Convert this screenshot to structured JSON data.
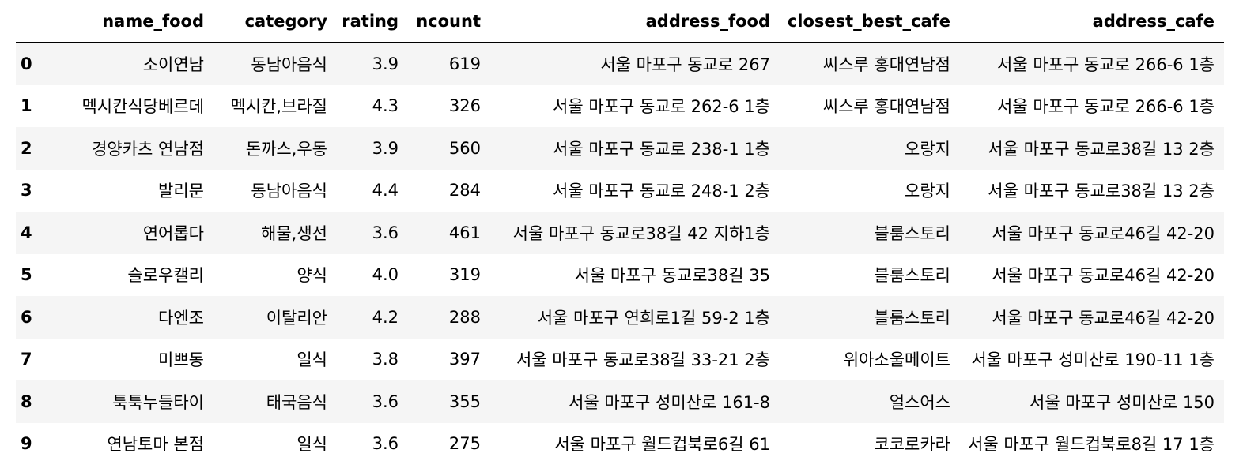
{
  "table": {
    "index_header": "",
    "columns": [
      "name_food",
      "category",
      "rating",
      "ncount",
      "address_food",
      "closest_best_cafe",
      "address_cafe"
    ],
    "rows": [
      {
        "index": "0",
        "cells": [
          "소이연남",
          "동남아음식",
          "3.9",
          "619",
          "서울 마포구 동교로 267",
          "씨스루 홍대연남점",
          "서울 마포구 동교로 266-6 1층"
        ]
      },
      {
        "index": "1",
        "cells": [
          "멕시칸식당베르데",
          "멕시칸,브라질",
          "4.3",
          "326",
          "서울 마포구 동교로 262-6 1층",
          "씨스루 홍대연남점",
          "서울 마포구 동교로 266-6 1층"
        ]
      },
      {
        "index": "2",
        "cells": [
          "경양카츠 연남점",
          "돈까스,우동",
          "3.9",
          "560",
          "서울 마포구 동교로 238-1 1층",
          "오랑지",
          "서울 마포구 동교로38길 13 2층"
        ]
      },
      {
        "index": "3",
        "cells": [
          "발리문",
          "동남아음식",
          "4.4",
          "284",
          "서울 마포구 동교로 248-1 2층",
          "오랑지",
          "서울 마포구 동교로38길 13 2층"
        ]
      },
      {
        "index": "4",
        "cells": [
          "연어롭다",
          "해물,생선",
          "3.6",
          "461",
          "서울 마포구 동교로38길 42 지하1층",
          "블룸스토리",
          "서울 마포구 동교로46길 42-20"
        ]
      },
      {
        "index": "5",
        "cells": [
          "슬로우캘리",
          "양식",
          "4.0",
          "319",
          "서울 마포구 동교로38길 35",
          "블룸스토리",
          "서울 마포구 동교로46길 42-20"
        ]
      },
      {
        "index": "6",
        "cells": [
          "다엔조",
          "이탈리안",
          "4.2",
          "288",
          "서울 마포구 연희로1길 59-2 1층",
          "블룸스토리",
          "서울 마포구 동교로46길 42-20"
        ]
      },
      {
        "index": "7",
        "cells": [
          "미쁘동",
          "일식",
          "3.8",
          "397",
          "서울 마포구 동교로38길 33-21 2층",
          "위아소울메이트",
          "서울 마포구 성미산로 190-11 1층"
        ]
      },
      {
        "index": "8",
        "cells": [
          "툭툭누들타이",
          "태국음식",
          "3.6",
          "355",
          "서울 마포구 성미산로 161-8",
          "얼스어스",
          "서울 마포구 성미산로 150"
        ]
      },
      {
        "index": "9",
        "cells": [
          "연남토마 본점",
          "일식",
          "3.6",
          "275",
          "서울 마포구 월드컵북로6길 61",
          "코코로카라",
          "서울 마포구 월드컵북로8길 17 1층"
        ]
      }
    ]
  }
}
